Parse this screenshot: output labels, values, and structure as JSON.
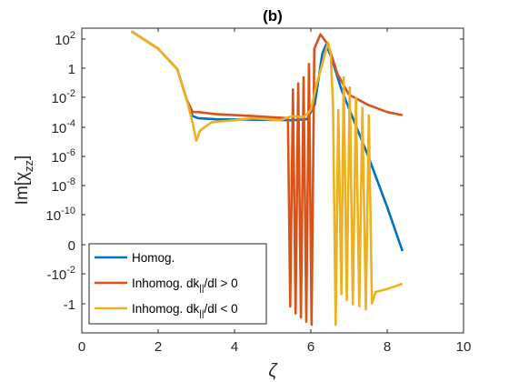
{
  "chart_data": {
    "type": "line",
    "title": "(b)",
    "xlabel": "ζ",
    "ylabel": "Im[χ",
    "ylabel_sub": "zz",
    "ylabel_close": "]",
    "xlim": [
      0,
      10
    ],
    "x_ticks": [
      0,
      2,
      4,
      6,
      8,
      10
    ],
    "x_tick_labels": [
      "0",
      "2",
      "4",
      "6",
      "8",
      "10"
    ],
    "y_scale": "symlog",
    "y_ticks": [
      {
        "base": "10",
        "exp": "2"
      },
      {
        "base": "1",
        "exp": ""
      },
      {
        "base": "10",
        "exp": "-2"
      },
      {
        "base": "10",
        "exp": "-4"
      },
      {
        "base": "10",
        "exp": "-6"
      },
      {
        "base": "10",
        "exp": "-8"
      },
      {
        "base": "10",
        "exp": "-10"
      },
      {
        "base": "0",
        "exp": ""
      },
      {
        "base": "-10",
        "exp": "-2"
      },
      {
        "base": "-1",
        "exp": ""
      }
    ],
    "grid": false,
    "legend_position": "bottom-left",
    "legend": [
      {
        "pre": "Homog.",
        "sub": "",
        "post": ""
      },
      {
        "pre": "Inhomog. dk",
        "sub": "||",
        "post": "/dl > 0"
      },
      {
        "pre": "Inhomog. dk",
        "sub": "||",
        "post": "/dl < 0"
      }
    ],
    "series": [
      {
        "color": "#0072BD",
        "points": [
          [
            1.3,
            10.7
          ],
          [
            2.0,
            9.0
          ],
          [
            2.5,
            7.0
          ],
          [
            2.75,
            4.0
          ],
          [
            2.9,
            2.4
          ],
          [
            3.05,
            2.2
          ],
          [
            3.5,
            2.1
          ],
          [
            4.5,
            2.05
          ],
          [
            5.5,
            2.0
          ],
          [
            5.9,
            2.1
          ],
          [
            6.1,
            3.5
          ],
          [
            6.3,
            8.5
          ],
          [
            6.4,
            9.4
          ],
          [
            6.55,
            8.0
          ],
          [
            6.8,
            5.0
          ],
          [
            7.5,
            -1.5
          ],
          [
            8.0,
            -6.5
          ],
          [
            8.4,
            -10.8
          ]
        ]
      },
      {
        "color": "#D95319",
        "points": [
          [
            1.3,
            10.7
          ],
          [
            2.0,
            9.0
          ],
          [
            2.5,
            7.0
          ],
          [
            2.75,
            4.0
          ],
          [
            2.9,
            2.8
          ],
          [
            3.05,
            2.8
          ],
          [
            3.5,
            2.6
          ],
          [
            4.5,
            2.4
          ],
          [
            5.4,
            2.2
          ],
          [
            5.46,
            -16.2
          ],
          [
            5.53,
            5.0
          ],
          [
            5.6,
            -16.9
          ],
          [
            5.67,
            5.6
          ],
          [
            5.74,
            -17.3
          ],
          [
            5.81,
            6.2
          ],
          [
            5.88,
            -17.7
          ],
          [
            5.95,
            7.5
          ],
          [
            6.02,
            -18.0
          ],
          [
            6.09,
            9.0
          ],
          [
            6.25,
            10.4
          ],
          [
            6.45,
            9.4
          ],
          [
            6.7,
            6.5
          ],
          [
            7.0,
            4.5
          ],
          [
            7.5,
            3.5
          ],
          [
            8.0,
            2.8
          ],
          [
            8.4,
            2.5
          ]
        ]
      },
      {
        "color": "#EDB120",
        "points": [
          [
            1.3,
            10.7
          ],
          [
            2.0,
            9.0
          ],
          [
            2.5,
            7.0
          ],
          [
            2.75,
            4.0
          ],
          [
            2.9,
            1.8
          ],
          [
            3.0,
            0.0
          ],
          [
            3.1,
            1.0
          ],
          [
            3.4,
            1.8
          ],
          [
            4.0,
            2.0
          ],
          [
            4.5,
            2.2
          ],
          [
            5.2,
            2.0
          ],
          [
            5.5,
            2.4
          ],
          [
            5.8,
            2.3
          ],
          [
            5.9,
            2.6
          ],
          [
            6.0,
            3.0
          ],
          [
            6.15,
            5.5
          ],
          [
            6.3,
            7.5
          ],
          [
            6.45,
            9.6
          ],
          [
            6.52,
            8.5
          ],
          [
            6.58,
            3.5
          ],
          [
            6.65,
            -18.0
          ],
          [
            6.72,
            3.0
          ],
          [
            6.8,
            -15.0
          ],
          [
            6.86,
            6.2
          ],
          [
            6.94,
            -15.6
          ],
          [
            7.02,
            5.2
          ],
          [
            7.1,
            -16.0
          ],
          [
            7.18,
            4.2
          ],
          [
            7.27,
            -16.2
          ],
          [
            7.35,
            3.2
          ],
          [
            7.44,
            -16.5
          ],
          [
            7.52,
            2.5
          ],
          [
            7.6,
            -15.9
          ],
          [
            7.7,
            -14.8
          ],
          [
            8.0,
            -14.5
          ],
          [
            8.4,
            -14.0
          ]
        ]
      }
    ]
  }
}
